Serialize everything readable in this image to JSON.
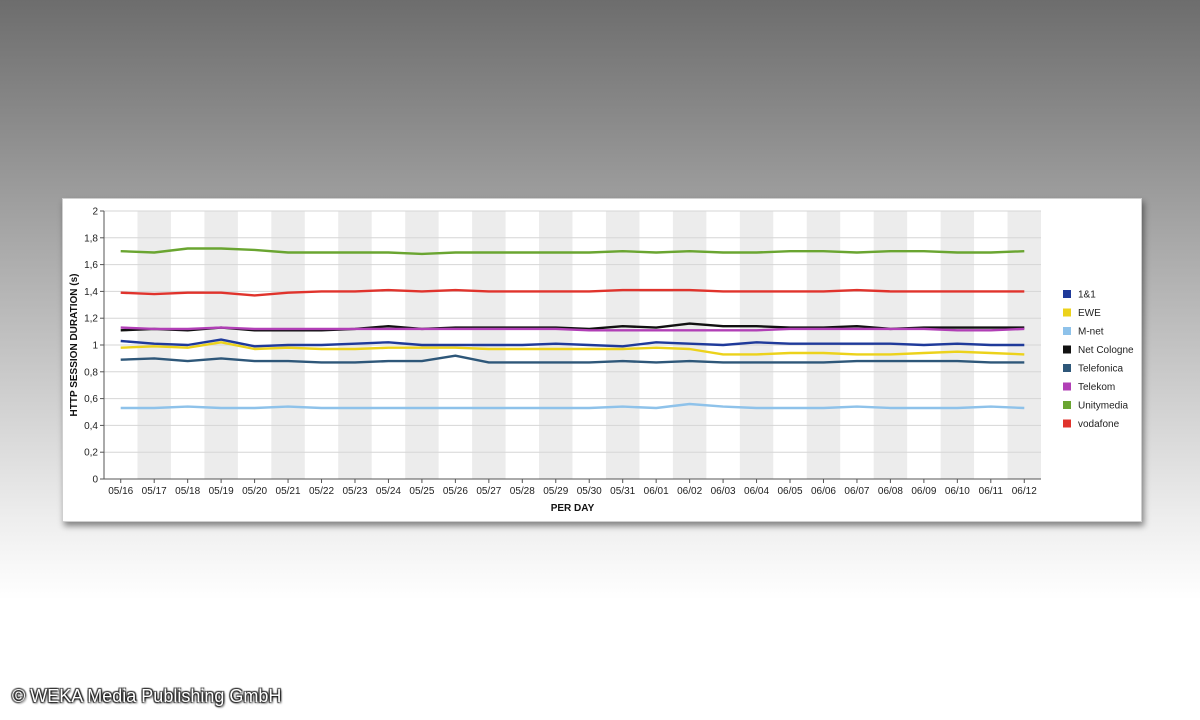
{
  "copyright": "© WEKA Media Publishing GmbH",
  "chart_data": {
    "type": "line",
    "title": "",
    "xlabel": "PER DAY",
    "ylabel": "HTTP SESSION DURATION (s)",
    "ylim": [
      0,
      2
    ],
    "yticks": [
      "0",
      "0,2",
      "0,4",
      "0,6",
      "0,8",
      "1",
      "1,2",
      "1,4",
      "1,6",
      "1,8",
      "2"
    ],
    "grid": true,
    "legend_position": "right",
    "categories": [
      "05/16",
      "05/17",
      "05/18",
      "05/19",
      "05/20",
      "05/21",
      "05/22",
      "05/23",
      "05/24",
      "05/25",
      "05/26",
      "05/27",
      "05/28",
      "05/29",
      "05/30",
      "05/31",
      "06/01",
      "06/02",
      "06/03",
      "06/04",
      "06/05",
      "06/06",
      "06/07",
      "06/08",
      "06/09",
      "06/10",
      "06/11",
      "06/12"
    ],
    "series": [
      {
        "name": "1&1",
        "color": "#1f3a9a",
        "values": [
          1.03,
          1.01,
          1.0,
          1.04,
          0.99,
          1.0,
          1.0,
          1.01,
          1.02,
          1.0,
          1.0,
          1.0,
          1.0,
          1.01,
          1.0,
          0.99,
          1.02,
          1.01,
          1.0,
          1.02,
          1.01,
          1.01,
          1.01,
          1.01,
          1.0,
          1.01,
          1.0,
          1.0
        ]
      },
      {
        "name": "EWE",
        "color": "#ecd21b",
        "values": [
          0.98,
          0.99,
          0.98,
          1.02,
          0.97,
          0.98,
          0.97,
          0.97,
          0.98,
          0.98,
          0.98,
          0.97,
          0.97,
          0.97,
          0.97,
          0.97,
          0.98,
          0.97,
          0.93,
          0.93,
          0.94,
          0.94,
          0.93,
          0.93,
          0.94,
          0.95,
          0.94,
          0.93
        ]
      },
      {
        "name": "M-net",
        "color": "#8ec2ea",
        "values": [
          0.53,
          0.53,
          0.54,
          0.53,
          0.53,
          0.54,
          0.53,
          0.53,
          0.53,
          0.53,
          0.53,
          0.53,
          0.53,
          0.53,
          0.53,
          0.54,
          0.53,
          0.56,
          0.54,
          0.53,
          0.53,
          0.53,
          0.54,
          0.53,
          0.53,
          0.53,
          0.54,
          0.53
        ]
      },
      {
        "name": "Net Cologne",
        "color": "#111111",
        "values": [
          1.11,
          1.12,
          1.11,
          1.13,
          1.11,
          1.11,
          1.11,
          1.12,
          1.14,
          1.12,
          1.13,
          1.13,
          1.13,
          1.13,
          1.12,
          1.14,
          1.13,
          1.16,
          1.14,
          1.14,
          1.13,
          1.13,
          1.14,
          1.12,
          1.13,
          1.13,
          1.13,
          1.13
        ]
      },
      {
        "name": "Telefonica",
        "color": "#2e5779",
        "values": [
          0.89,
          0.9,
          0.88,
          0.9,
          0.88,
          0.88,
          0.87,
          0.87,
          0.88,
          0.88,
          0.92,
          0.87,
          0.87,
          0.87,
          0.87,
          0.88,
          0.87,
          0.88,
          0.87,
          0.87,
          0.87,
          0.87,
          0.88,
          0.88,
          0.88,
          0.88,
          0.87,
          0.87
        ]
      },
      {
        "name": "Telekom",
        "color": "#b13fb6",
        "values": [
          1.13,
          1.12,
          1.12,
          1.13,
          1.12,
          1.12,
          1.12,
          1.12,
          1.12,
          1.12,
          1.12,
          1.12,
          1.12,
          1.12,
          1.11,
          1.11,
          1.11,
          1.11,
          1.11,
          1.11,
          1.12,
          1.12,
          1.12,
          1.12,
          1.12,
          1.11,
          1.11,
          1.12
        ]
      },
      {
        "name": "Unitymedia",
        "color": "#6aa531",
        "values": [
          1.7,
          1.69,
          1.72,
          1.72,
          1.71,
          1.69,
          1.69,
          1.69,
          1.69,
          1.68,
          1.69,
          1.69,
          1.69,
          1.69,
          1.69,
          1.7,
          1.69,
          1.7,
          1.69,
          1.69,
          1.7,
          1.7,
          1.69,
          1.7,
          1.7,
          1.69,
          1.69,
          1.7
        ]
      },
      {
        "name": "vodafone",
        "color": "#e0332c",
        "values": [
          1.39,
          1.38,
          1.39,
          1.39,
          1.37,
          1.39,
          1.4,
          1.4,
          1.41,
          1.4,
          1.41,
          1.4,
          1.4,
          1.4,
          1.4,
          1.41,
          1.41,
          1.41,
          1.4,
          1.4,
          1.4,
          1.4,
          1.41,
          1.4,
          1.4,
          1.4,
          1.4,
          1.4
        ]
      }
    ]
  }
}
